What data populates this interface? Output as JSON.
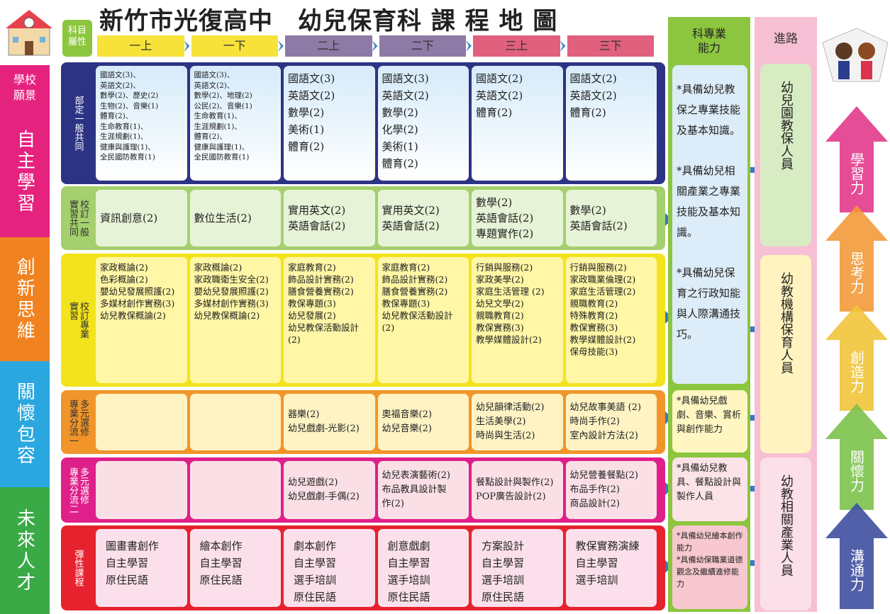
{
  "title": "新竹市光復高中　幼兒保育科 課 程 地 圖",
  "vision": {
    "header": "學校願景",
    "items": [
      "自主學習",
      "創新思維",
      "關懷包容",
      "未來人才"
    ]
  },
  "grid": {
    "attribute_header": "科目屬性",
    "semesters": [
      "一上",
      "一下",
      "二上",
      "二下",
      "三上",
      "三下"
    ],
    "rows": [
      {
        "label": [
          "部定一般共同"
        ],
        "cells": [
          [
            "國語文(3)、",
            "英語文(2)、",
            "數學(2)、歷史(2)",
            "生物(2)、音樂(1)",
            "體育(2)、",
            "生命教育(1)、",
            "生涯規劃(1)、",
            "健康與護理(1)、",
            "全民國防教育(1)"
          ],
          [
            "國語文(3)、",
            "英語文(2)、",
            "數學(2)、地理(2)",
            "公民(2)、音樂(1)",
            "生命教育(1)、",
            "生涯規劃(1)、",
            "體育(2)、",
            "健康與護理(1)、",
            "全民國防教育(1)"
          ],
          [
            "國語文(3)",
            "英語文(2)",
            "數學(2)",
            "美術(1)",
            "體育(2)"
          ],
          [
            "國語文(3)",
            "英語文(2)",
            "數學(2)",
            "化學(2)",
            "美術(1)",
            "體育(2)"
          ],
          [
            "國語文(2)",
            "英語文(2)",
            "體育(2)"
          ],
          [
            "國語文(2)",
            "英語文(2)",
            "體育(2)"
          ]
        ]
      },
      {
        "label": [
          "校訂一般",
          "實習共同"
        ],
        "cells": [
          [
            "資訊創意(2)"
          ],
          [
            "數位生活(2)"
          ],
          [
            "實用英文(2)",
            "英語會話(2)"
          ],
          [
            "實用英文(2)",
            "英語會話(2)"
          ],
          [
            "數學(2)",
            "英語會話(2)",
            "專題實作(2)"
          ],
          [
            "數學(2)",
            "英語會話(2)"
          ]
        ]
      },
      {
        "label": [
          "校訂專業",
          "實習"
        ],
        "cells": [
          [
            "家政概論(2)",
            "色彩概論(2)",
            "嬰幼兒發展照護(2)",
            "多媒材創作實務(3)",
            "幼兒教保概論(2)"
          ],
          [
            "家政概論(2)",
            "家政職衛生安全(2)",
            "嬰幼兒發展照護(2)",
            "多媒材創作實務(3)",
            "幼兒教保概論(2)"
          ],
          [
            "家庭教育(2)",
            "飾品設計實務(2)",
            "膳食營養實務(2)",
            "教保專題(3)",
            "幼兒發展(2)",
            "幼兒教保活動設計",
            "(2)"
          ],
          [
            "家庭教育(2)",
            "飾品設計實務(2)",
            "膳食營養實務(2)",
            "教保專題(3)",
            "幼兒教保活動設計",
            "(2)"
          ],
          [
            "行銷與服務(2)",
            "家政美學(2)",
            "家庭生活管理 (2)",
            "幼兒文學(2)",
            "親職教育(2)",
            "教保實務(3)",
            "教學媒體設計(2)"
          ],
          [
            "行銷與服務(2)",
            "家政職業倫理(2)",
            "家庭生活管理(2)",
            "親職教育(2)",
            "特殊教育(2)",
            "教保實務(3)",
            "教學媒體設計(2)",
            "保母技能(3)"
          ]
        ]
      },
      {
        "label": [
          "多元選修",
          "專業分流一"
        ],
        "cells": [
          [],
          [],
          [
            "器樂(2)",
            "幼兒戲劇-光影(2)"
          ],
          [
            "奧福音樂(2)",
            "幼兒音樂(2)"
          ],
          [
            "幼兒韻律活動(2)",
            "生活美學(2)",
            "時尚與生活(2)"
          ],
          [
            "幼兒故事美語 (2)",
            "時尚手作(2)",
            "室內設計方法(2)"
          ]
        ]
      },
      {
        "label": [
          "多元選修",
          "專業分流二"
        ],
        "cells": [
          [],
          [],
          [
            "幼兒遊戲(2)",
            "幼兒戲劇-手偶(2)"
          ],
          [
            "幼兒表演藝術(2)",
            "布品教具設計製",
            "作(2)"
          ],
          [
            "餐點設計與製作(2)",
            "POP廣告設計(2)"
          ],
          [
            "幼兒營養餐點(2)",
            "布品手作(2)",
            "商品設計(2)"
          ]
        ]
      },
      {
        "label": [
          "彈性課程"
        ],
        "cells": [
          [
            "圖畫書創作",
            "自主學習",
            "原住民語"
          ],
          [
            "繪本創作",
            "自主學習",
            "原住民語"
          ],
          [
            "劇本創作",
            "自主學習",
            "選手培訓",
            "原住民語"
          ],
          [
            "創意戲劇",
            "自主學習",
            "選手培訓",
            "原住民語"
          ],
          [
            "方案設計",
            "自主學習",
            "選手培訓",
            "原住民語"
          ],
          [
            "教保實務演練",
            "自主學習",
            "選手培訓"
          ]
        ]
      }
    ]
  },
  "competencies": {
    "header": "科專業能力",
    "boxes": [
      [
        "*具備幼兒教保之專業技能及基本知識。",
        "*具備幼兒相關產業之專業技能及基本知識。",
        "*具備幼兒保育之行政知能與人際溝通技巧。"
      ],
      [
        "*具備幼兒戲劇、音樂、賞析與創作能力"
      ],
      [
        "*具備幼兒教具、餐點設計與製作人員"
      ],
      [
        "*具備幼兒繪本創作能力",
        "*具備幼保職業道德觀念及繼續進修能力"
      ]
    ]
  },
  "careers": {
    "header": "進路",
    "items": [
      "幼兒園教保人員",
      "幼教機構保育人員",
      "幼教相關產業人員"
    ]
  },
  "abilities": [
    "學習力",
    "思考力",
    "創造力",
    "關懷力",
    "溝通力"
  ]
}
